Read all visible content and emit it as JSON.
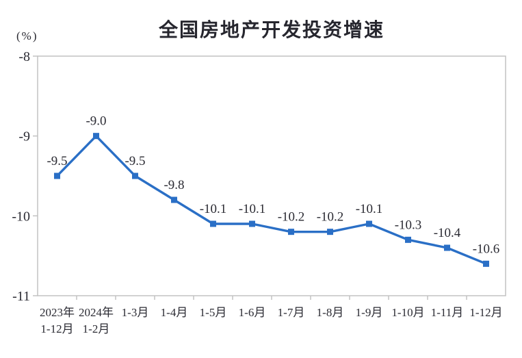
{
  "page": {
    "background": "#ffffff"
  },
  "chart_data": {
    "type": "line",
    "title": "全国房地产开发投资增速",
    "unit_label": "(%)",
    "categories": [
      "2023年\n1-12月",
      "2024年\n1-2月",
      "1-3月",
      "1-4月",
      "1-5月",
      "1-6月",
      "1-7月",
      "1-8月",
      "1-9月",
      "1-10月",
      "1-11月",
      "1-12月"
    ],
    "series": [
      {
        "name": "全国房地产开发投资增速",
        "values": [
          -9.5,
          -9.0,
          -9.5,
          -9.8,
          -10.1,
          -10.1,
          -10.2,
          -10.2,
          -10.1,
          -10.3,
          -10.4,
          -10.6
        ]
      }
    ],
    "data_labels": [
      "-9.5",
      "-9.0",
      "-9.5",
      "-9.8",
      "-10.1",
      "-10.1",
      "-10.2",
      "-10.2",
      "-10.1",
      "-10.3",
      "-10.4",
      "-10.6"
    ],
    "ylim": [
      -11,
      -8
    ],
    "yticks": [
      -8,
      -9,
      -10,
      -11
    ],
    "grid": false,
    "legend": "none",
    "marker": "square",
    "line_color": "#2a6fc6",
    "axis_color": "#c2c2c2",
    "text_color": "#2b2b33"
  }
}
